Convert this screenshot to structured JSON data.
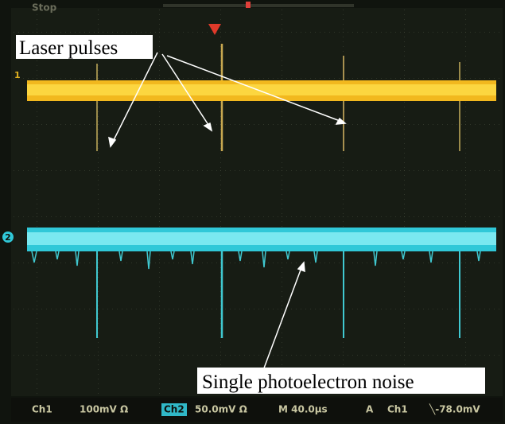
{
  "screen": {
    "status": "Stop",
    "channel_markers": [
      "1",
      "2"
    ]
  },
  "annotations": {
    "laser": "Laser pulses",
    "noise": "Single photoelectron noise"
  },
  "status_bar": {
    "ch1": "Ch1",
    "ch1_scale": "100mV Ω",
    "ch2": "Ch2",
    "ch2_scale": "50.0mV Ω",
    "timebase": "M 40.0µs",
    "trigger_mode": "A",
    "trigger_source": "Ch1",
    "trigger_level": "╲-78.0mV"
  }
}
